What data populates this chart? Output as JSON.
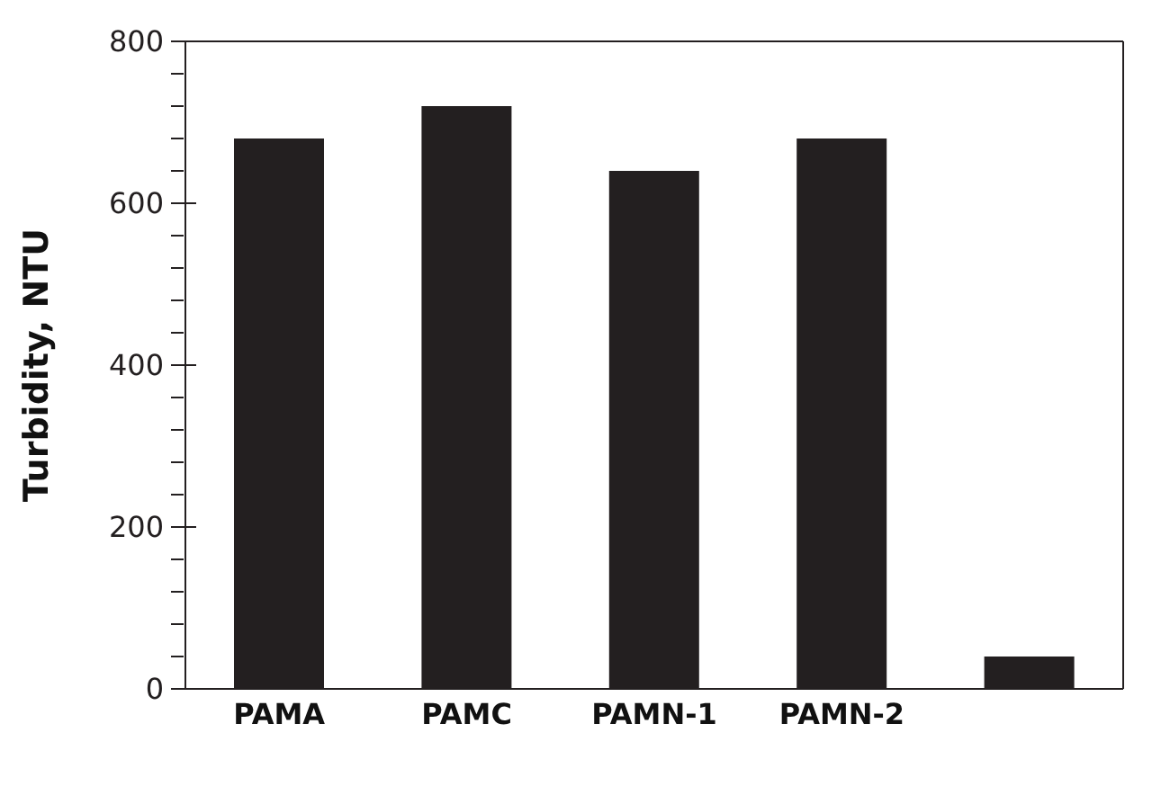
{
  "chart_data": {
    "type": "bar",
    "ylabel": "Turbidity, NTU",
    "categories": [
      "PAMA",
      "PAMC",
      "PAMN-1",
      "PAMN-2",
      null
    ],
    "values": [
      680,
      720,
      640,
      680,
      40
    ],
    "color": "#231f20",
    "ylim": [
      0,
      800
    ],
    "yticks": [
      0,
      {
        "value": 40,
        "label": null
      },
      {
        "value": 80,
        "label": null
      },
      {
        "value": 120,
        "label": null
      },
      {
        "value": 160,
        "label": null
      },
      200,
      {
        "value": 240,
        "label": null
      },
      {
        "value": 280,
        "label": null
      },
      {
        "value": 320,
        "label": null
      },
      {
        "value": 360,
        "label": null
      },
      400,
      {
        "value": 440,
        "label": null
      },
      {
        "value": 480,
        "label": null
      },
      {
        "value": 520,
        "label": null
      },
      {
        "value": 560,
        "label": null
      },
      600,
      {
        "value": 640,
        "label": null
      },
      {
        "value": 680,
        "label": null
      },
      {
        "value": 720,
        "label": null
      },
      {
        "value": 760,
        "label": null
      },
      800
    ],
    "grid": false
  }
}
